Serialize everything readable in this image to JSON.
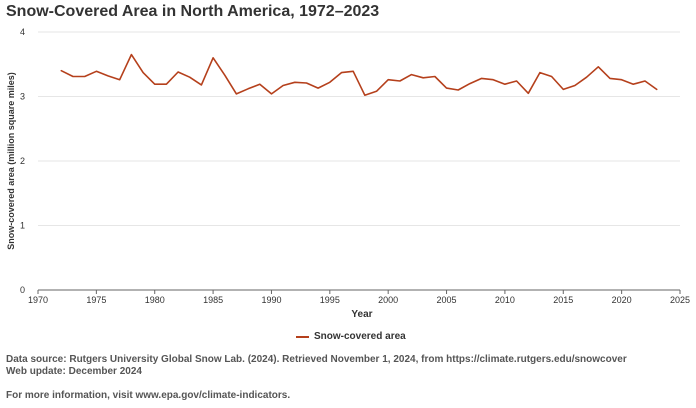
{
  "colors": {
    "series": "#b5401c",
    "grid": "#e6e6e6",
    "axis": "#666666",
    "text": "#333333"
  },
  "chart_data": {
    "type": "line",
    "title": "Snow-Covered Area in North America, 1972–2023",
    "xlabel": "Year",
    "ylabel": "Snow-covered area (million square miles)",
    "xlim": [
      1970,
      2025
    ],
    "ylim": [
      0,
      4
    ],
    "xticks": [
      "1970",
      "1975",
      "1980",
      "1985",
      "1990",
      "1995",
      "2000",
      "2005",
      "2010",
      "2015",
      "2020",
      "2025"
    ],
    "yticks": [
      "0",
      "1",
      "2",
      "3",
      "4"
    ],
    "grid": true,
    "legend_position": "bottom-center",
    "series": [
      {
        "name": "Snow-covered area",
        "x": [
          1972,
          1973,
          1974,
          1975,
          1976,
          1977,
          1978,
          1979,
          1980,
          1981,
          1982,
          1983,
          1984,
          1985,
          1986,
          1987,
          1988,
          1989,
          1990,
          1991,
          1992,
          1993,
          1994,
          1995,
          1996,
          1997,
          1998,
          1999,
          2000,
          2001,
          2002,
          2003,
          2004,
          2005,
          2006,
          2007,
          2008,
          2009,
          2010,
          2011,
          2012,
          2013,
          2014,
          2015,
          2016,
          2017,
          2018,
          2019,
          2020,
          2021,
          2022,
          2023
        ],
        "y": [
          3.4,
          3.31,
          3.31,
          3.39,
          3.32,
          3.26,
          3.65,
          3.37,
          3.19,
          3.19,
          3.38,
          3.3,
          3.18,
          3.6,
          3.33,
          3.04,
          3.12,
          3.19,
          3.04,
          3.17,
          3.22,
          3.21,
          3.13,
          3.22,
          3.37,
          3.39,
          3.02,
          3.08,
          3.26,
          3.24,
          3.34,
          3.29,
          3.31,
          3.13,
          3.1,
          3.2,
          3.28,
          3.26,
          3.19,
          3.24,
          3.05,
          3.37,
          3.31,
          3.11,
          3.17,
          3.3,
          3.46,
          3.28,
          3.26,
          3.19,
          3.24,
          3.11
        ]
      }
    ]
  },
  "footer": {
    "source": "Data source: Rutgers University Global Snow Lab. (2024). Retrieved November 1, 2024, from https://climate.rutgers.edu/snowcover",
    "update": "Web update: December 2024",
    "more_info": "For more information, visit www.epa.gov/climate-indicators."
  }
}
